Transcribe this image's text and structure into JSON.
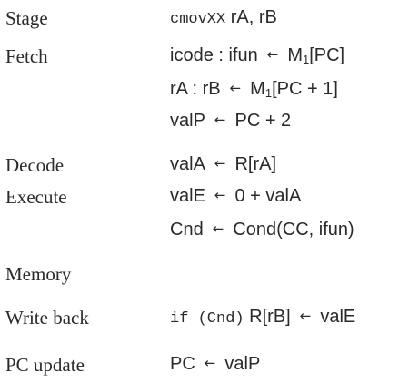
{
  "header": {
    "stage_label": "Stage",
    "instruction_mono": "cmovXX",
    "instruction_args": " rA, rB"
  },
  "arrow": "←",
  "rows": {
    "fetch": {
      "stage": "Fetch",
      "line1": {
        "lhs": "icode : ifun",
        "mem": "M",
        "sub": "1",
        "rhs": "[PC]"
      },
      "line2": {
        "lhs": "rA : rB",
        "mem": "M",
        "sub": "1",
        "rhs": "[PC + 1]"
      },
      "line3": {
        "lhs": "valP",
        "rhs": "PC + 2"
      }
    },
    "decode": {
      "stage": "Decode",
      "line1": {
        "lhs": "valA",
        "rhs": "R[rA]"
      }
    },
    "execute": {
      "stage": "Execute",
      "line1": {
        "lhs": "valE",
        "rhs": "0 + valA"
      },
      "line2": {
        "lhs": "Cnd",
        "rhs": "Cond(CC, ifun)"
      }
    },
    "memory": {
      "stage": "Memory"
    },
    "write_back": {
      "stage": "Write back",
      "mono": "if (Cnd)",
      "lhs": " R[rB]",
      "rhs": "valE"
    },
    "pc_update": {
      "stage": "PC update",
      "lhs": "PC",
      "rhs": "valP"
    }
  }
}
